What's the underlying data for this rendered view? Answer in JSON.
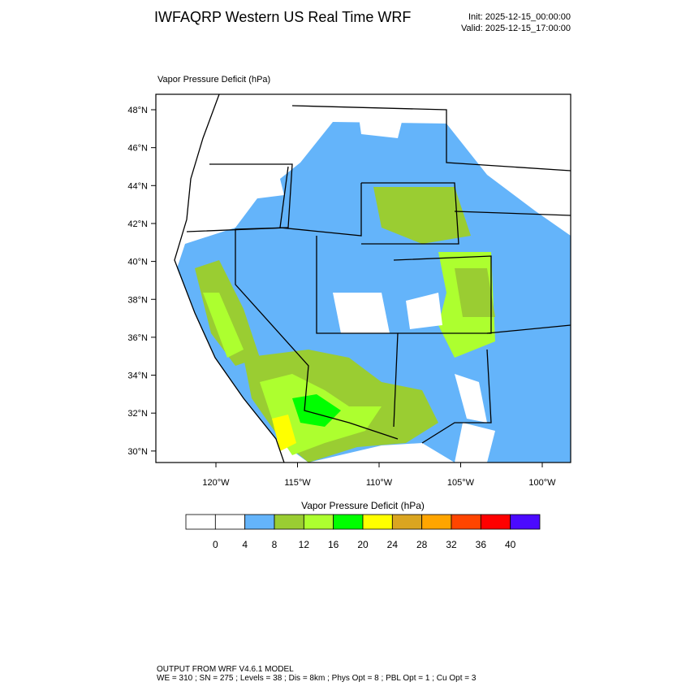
{
  "header": {
    "title": "IWFAQRP Western US Real Time WRF",
    "init": "Init: 2025-12-15_00:00:00",
    "valid": "Valid: 2025-12-15_17:00:00"
  },
  "map": {
    "title": "Vapor Pressure Deficit   (hPa)",
    "lat_labels": [
      "48°N",
      "46°N",
      "44°N",
      "42°N",
      "40°N",
      "38°N",
      "36°N",
      "34°N",
      "32°N",
      "30°N"
    ],
    "lon_labels": [
      "120°W",
      "115°W",
      "110°W",
      "105°W",
      "100°W"
    ]
  },
  "colorbar": {
    "title": "Vapor Pressure Deficit  (hPa)",
    "colors": [
      "#ffffff",
      "#ffffff",
      "#64b4fa",
      "#9acd32",
      "#adff2f",
      "#00ff00",
      "#ffff00",
      "#daa520",
      "#ffa500",
      "#ff4500",
      "#ff0000",
      "#4b0aff"
    ],
    "labels": [
      0,
      4,
      8,
      12,
      16,
      20,
      24,
      28,
      32,
      36,
      40
    ]
  },
  "footer": {
    "line1": "OUTPUT FROM WRF V4.6.1 MODEL",
    "line2": "WE = 310 ; SN = 275 ; Levels = 38 ; Dis = 8km ; Phys Opt = 8 ; PBL Opt = 1 ; Cu Opt = 3"
  }
}
